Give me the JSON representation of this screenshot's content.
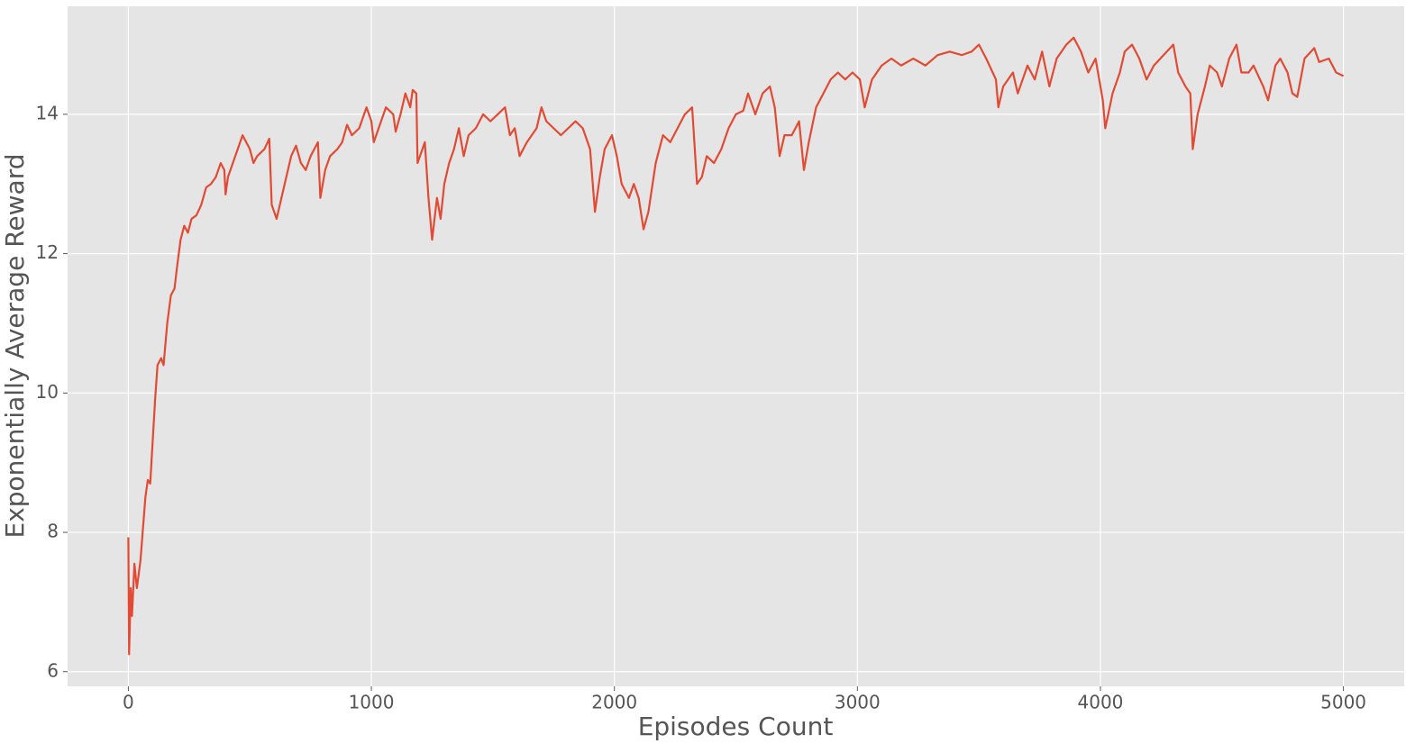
{
  "chart_data": {
    "type": "line",
    "xlabel": "Episodes Count",
    "ylabel": "Exponentially Average Reward",
    "color": "#e24a33",
    "grid": true,
    "xlim": [
      -250,
      5250
    ],
    "ylim": [
      5.79,
      15.55
    ],
    "xticks": [
      0,
      1000,
      2000,
      3000,
      4000,
      5000
    ],
    "yticks": [
      6,
      8,
      10,
      12,
      14
    ],
    "x": [
      0,
      3,
      10,
      15,
      25,
      35,
      50,
      70,
      80,
      90,
      100,
      110,
      120,
      135,
      145,
      160,
      175,
      190,
      200,
      215,
      230,
      245,
      260,
      280,
      300,
      320,
      340,
      360,
      380,
      395,
      400,
      410,
      430,
      450,
      470,
      485,
      500,
      515,
      530,
      560,
      580,
      590,
      610,
      630,
      650,
      670,
      690,
      710,
      730,
      750,
      780,
      790,
      810,
      830,
      860,
      880,
      900,
      920,
      950,
      980,
      1000,
      1010,
      1030,
      1060,
      1090,
      1100,
      1120,
      1140,
      1160,
      1170,
      1185,
      1190,
      1220,
      1235,
      1250,
      1270,
      1285,
      1300,
      1320,
      1340,
      1360,
      1380,
      1400,
      1430,
      1460,
      1490,
      1520,
      1550,
      1570,
      1590,
      1610,
      1640,
      1680,
      1700,
      1720,
      1750,
      1780,
      1810,
      1840,
      1870,
      1900,
      1920,
      1940,
      1960,
      1990,
      2010,
      2030,
      2060,
      2080,
      2100,
      2120,
      2140,
      2170,
      2200,
      2230,
      2260,
      2290,
      2320,
      2340,
      2360,
      2380,
      2410,
      2440,
      2470,
      2500,
      2530,
      2550,
      2580,
      2610,
      2640,
      2660,
      2680,
      2700,
      2730,
      2760,
      2780,
      2800,
      2830,
      2860,
      2890,
      2920,
      2950,
      2980,
      3010,
      3030,
      3060,
      3100,
      3140,
      3180,
      3230,
      3280,
      3330,
      3380,
      3430,
      3470,
      3500,
      3530,
      3570,
      3580,
      3600,
      3640,
      3660,
      3700,
      3730,
      3760,
      3790,
      3820,
      3860,
      3890,
      3920,
      3950,
      3980,
      4010,
      4020,
      4050,
      4080,
      4100,
      4130,
      4160,
      4190,
      4220,
      4260,
      4300,
      4320,
      4350,
      4370,
      4380,
      4400,
      4430,
      4450,
      4480,
      4500,
      4530,
      4560,
      4580,
      4610,
      4630,
      4670,
      4690,
      4720,
      4740,
      4770,
      4790,
      4810,
      4840,
      4880,
      4900,
      4940,
      4970,
      5000
    ],
    "values": [
      7.93,
      6.25,
      7.2,
      6.8,
      7.55,
      7.2,
      7.6,
      8.5,
      8.75,
      8.7,
      9.3,
      9.9,
      10.4,
      10.5,
      10.4,
      11.0,
      11.4,
      11.5,
      11.8,
      12.2,
      12.4,
      12.3,
      12.5,
      12.55,
      12.7,
      12.95,
      13.0,
      13.1,
      13.3,
      13.2,
      12.85,
      13.1,
      13.3,
      13.5,
      13.7,
      13.6,
      13.5,
      13.3,
      13.4,
      13.5,
      13.65,
      12.7,
      12.5,
      12.8,
      13.1,
      13.4,
      13.55,
      13.3,
      13.2,
      13.4,
      13.6,
      12.8,
      13.2,
      13.4,
      13.5,
      13.6,
      13.85,
      13.7,
      13.8,
      14.1,
      13.9,
      13.6,
      13.8,
      14.1,
      14.0,
      13.75,
      14.0,
      14.3,
      14.1,
      14.35,
      14.3,
      13.3,
      13.6,
      12.8,
      12.2,
      12.8,
      12.5,
      13.0,
      13.3,
      13.5,
      13.8,
      13.4,
      13.7,
      13.8,
      14.0,
      13.9,
      14.0,
      14.1,
      13.7,
      13.8,
      13.4,
      13.6,
      13.8,
      14.1,
      13.9,
      13.8,
      13.7,
      13.8,
      13.9,
      13.8,
      13.5,
      12.6,
      13.1,
      13.5,
      13.7,
      13.4,
      13.0,
      12.8,
      13.0,
      12.8,
      12.35,
      12.6,
      13.3,
      13.7,
      13.6,
      13.8,
      14.0,
      14.1,
      13.0,
      13.1,
      13.4,
      13.3,
      13.5,
      13.8,
      14.0,
      14.05,
      14.3,
      14.0,
      14.3,
      14.4,
      14.1,
      13.4,
      13.7,
      13.7,
      13.9,
      13.2,
      13.6,
      14.1,
      14.3,
      14.5,
      14.6,
      14.5,
      14.6,
      14.5,
      14.1,
      14.5,
      14.7,
      14.8,
      14.7,
      14.8,
      14.7,
      14.85,
      14.9,
      14.85,
      14.9,
      15.0,
      14.8,
      14.5,
      14.1,
      14.4,
      14.6,
      14.3,
      14.7,
      14.5,
      14.9,
      14.4,
      14.8,
      15.0,
      15.1,
      14.9,
      14.6,
      14.8,
      14.2,
      13.8,
      14.3,
      14.6,
      14.9,
      15.0,
      14.8,
      14.5,
      14.7,
      14.85,
      15.0,
      14.6,
      14.4,
      14.3,
      13.5,
      14.0,
      14.4,
      14.7,
      14.6,
      14.4,
      14.8,
      15.0,
      14.6,
      14.6,
      14.7,
      14.4,
      14.2,
      14.7,
      14.8,
      14.6,
      14.3,
      14.25,
      14.8,
      14.95,
      14.75,
      14.8,
      14.6,
      14.55
    ]
  }
}
